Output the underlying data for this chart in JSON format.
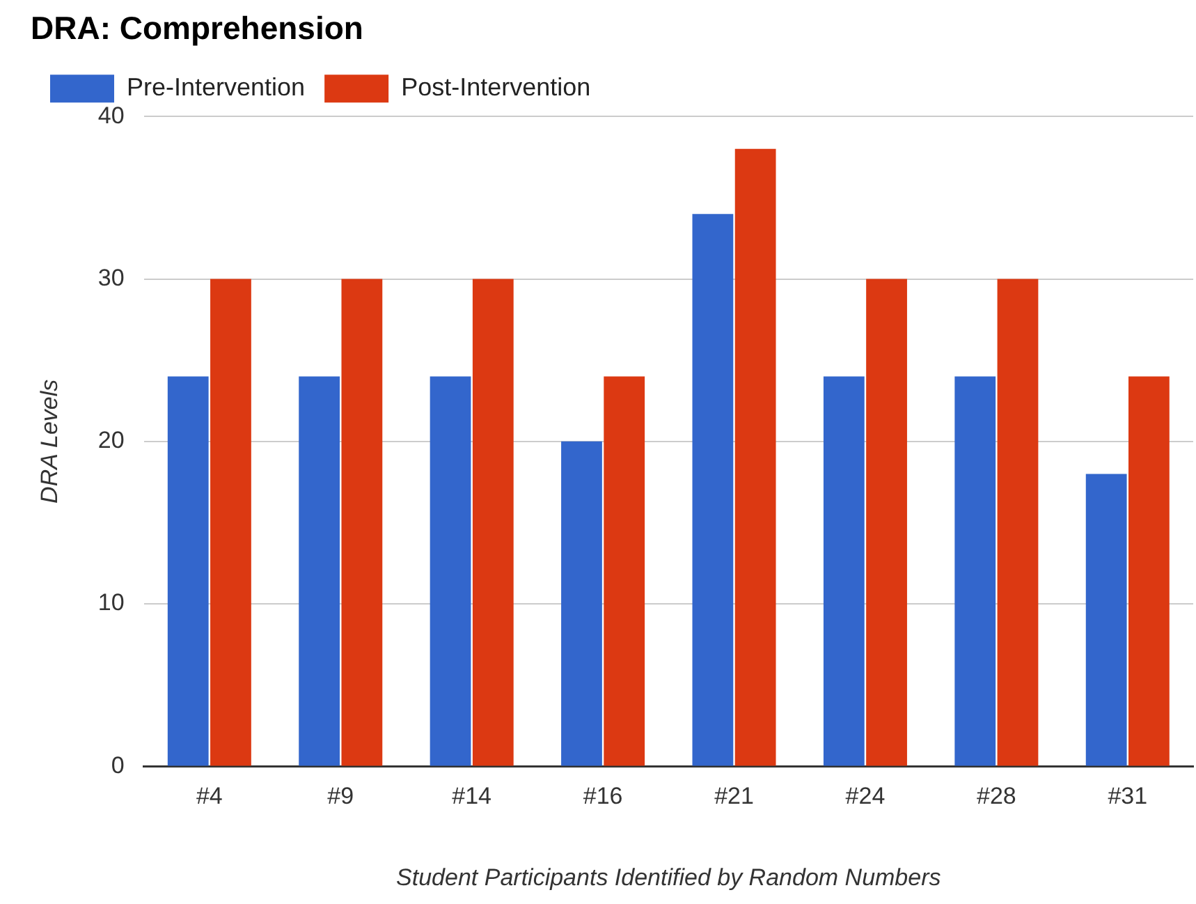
{
  "chart_data": {
    "type": "bar",
    "title": "DRA: Comprehension",
    "xlabel": "Student Participants Identified by Random Numbers",
    "ylabel": "DRA Levels",
    "categories": [
      "#4",
      "#9",
      "#14",
      "#16",
      "#21",
      "#24",
      "#28",
      "#31"
    ],
    "series": [
      {
        "name": "Pre-Intervention",
        "color": "#3366cc",
        "values": [
          24,
          24,
          24,
          20,
          34,
          24,
          24,
          18
        ]
      },
      {
        "name": "Post-Intervention",
        "color": "#dc3912",
        "values": [
          30,
          30,
          30,
          24,
          38,
          30,
          30,
          24
        ]
      }
    ],
    "ylim": [
      0,
      40
    ],
    "yticks": [
      0,
      10,
      20,
      30,
      40
    ],
    "grid": "y",
    "legend": "top left"
  }
}
